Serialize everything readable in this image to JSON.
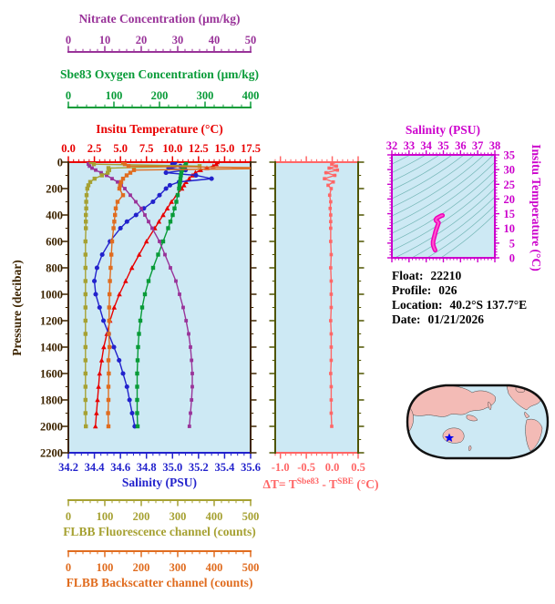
{
  "colors": {
    "plot_bg": "#cde9f4",
    "pressure": "#3d2400",
    "temperature": "#e80000",
    "salinity": "#2222cc",
    "oxygen": "#089b38",
    "nitrate": "#993399",
    "fluorescence": "#a6a132",
    "backscatter": "#e06c1f",
    "delta_t": "#ff6666",
    "mid_frame": "#4f5400",
    "ts_axis": "#cc00cc",
    "ts_curve": "#ee00bb",
    "ts_curve_core": "#ff55cc",
    "ts_contour": "#74b6b6",
    "map_land": "#f3bbb6",
    "map_ocean": "#cde9f4",
    "map_marker": "#0000ee",
    "info_text": "#000000"
  },
  "info": {
    "float_label": "Float:",
    "float_value": "22210",
    "profile_label": "Profile:",
    "profile_value": "026",
    "location_label": "Location:",
    "location_value": "40.2°S  137.7°E",
    "date_label": "Date:",
    "date_value": "01/21/2026"
  },
  "chart_data": [
    {
      "id": "profile-plot",
      "type": "line",
      "y_axis": {
        "label": "Pressure (decibar)",
        "range": [
          0,
          2200
        ],
        "ticks": [
          0,
          200,
          400,
          600,
          800,
          1000,
          1200,
          1400,
          1600,
          1800,
          2000,
          2200
        ],
        "minor_step": 100
      },
      "x_axes": [
        {
          "id": "nitrate",
          "label": "Nitrate Concentration (μm/kg)",
          "range": [
            0,
            50
          ],
          "ticks": [
            0,
            10,
            20,
            30,
            40,
            50
          ],
          "minor_step": 2
        },
        {
          "id": "oxygen",
          "label": "Sbe83 Oxygen Concentration (μm/kg)",
          "range": [
            0,
            400
          ],
          "ticks": [
            0,
            100,
            200,
            300,
            400
          ],
          "minor_step": 20
        },
        {
          "id": "temperature",
          "label": "Insitu Temperature (°C)",
          "range": [
            0,
            17.5
          ],
          "ticks": [
            "0.0",
            "2.5",
            "5.0",
            "7.5",
            "10.0",
            "12.5",
            "15.0",
            "17.5"
          ],
          "minor_step": 0.5
        },
        {
          "id": "salinity",
          "label": "Salinity (PSU)",
          "range": [
            34.2,
            35.6
          ],
          "ticks": [
            "34.2",
            "34.4",
            "34.6",
            "34.8",
            "35.0",
            "35.2",
            "35.4",
            "35.6"
          ],
          "minor_step": 0.05
        },
        {
          "id": "fluorescence",
          "label": "FLBB Fluorescence channel (counts)",
          "range": [
            0,
            500
          ],
          "ticks": [
            0,
            100,
            200,
            300,
            400,
            500
          ],
          "minor_step": 20
        },
        {
          "id": "backscatter",
          "label": "FLBB Backscatter channel (counts)",
          "range": [
            0,
            500
          ],
          "ticks": [
            0,
            100,
            200,
            300,
            400,
            500
          ],
          "minor_step": 20
        }
      ],
      "pressure": [
        0,
        15,
        30,
        45,
        60,
        80,
        100,
        125,
        150,
        175,
        200,
        250,
        300,
        350,
        400,
        450,
        500,
        600,
        700,
        800,
        900,
        1000,
        1100,
        1200,
        1300,
        1400,
        1500,
        1600,
        1700,
        1800,
        1900,
        2000
      ],
      "series": [
        {
          "name": "Insitu Temperature",
          "axis": "temperature",
          "marker": "triangle",
          "values": [
            14.3,
            14.2,
            13.9,
            13.3,
            12.7,
            12.2,
            11.9,
            11.6,
            11.3,
            11.1,
            10.9,
            10.4,
            9.9,
            9.5,
            9.1,
            8.7,
            8.3,
            7.5,
            6.8,
            6.1,
            5.5,
            4.9,
            4.4,
            4.0,
            3.7,
            3.4,
            3.2,
            3.0,
            2.9,
            2.8,
            2.7,
            2.6
          ]
        },
        {
          "name": "Salinity",
          "axis": "salinity",
          "marker": "circle",
          "values": [
            35.02,
            35.0,
            35.06,
            34.97,
            35.1,
            34.95,
            35.18,
            35.3,
            35.05,
            34.98,
            34.95,
            34.9,
            34.85,
            34.78,
            34.72,
            34.65,
            34.6,
            34.52,
            34.46,
            34.42,
            34.4,
            34.41,
            34.44,
            34.47,
            34.51,
            34.55,
            34.59,
            34.62,
            34.65,
            34.67,
            34.69,
            34.71
          ]
        },
        {
          "name": "Sbe83 Oxygen",
          "axis": "oxygen",
          "marker": "square",
          "values": [
            258,
            258,
            256,
            252,
            250,
            248,
            247,
            246,
            245,
            244,
            243,
            240,
            237,
            233,
            229,
            224,
            219,
            208,
            197,
            186,
            176,
            168,
            162,
            158,
            155,
            153,
            152,
            151,
            151,
            151,
            151,
            152
          ]
        },
        {
          "name": "Nitrate",
          "axis": "nitrate",
          "marker": "square",
          "values": [
            5.5,
            5.5,
            5.8,
            6.5,
            7.5,
            9,
            10.5,
            12,
            13.5,
            14.5,
            15.5,
            17,
            18.5,
            20,
            21,
            22,
            23,
            25,
            26.5,
            28,
            29.5,
            30.5,
            31.5,
            32.3,
            33,
            33.5,
            33.8,
            34,
            34,
            33.8,
            33.5,
            33.2
          ]
        },
        {
          "name": "FLBB Fluorescence",
          "axis": "fluorescence",
          "marker": "square",
          "values": [
            62,
            70,
            360,
            110,
            112,
            108,
            92,
            72,
            60,
            55,
            52,
            50,
            49,
            49,
            48,
            48,
            48,
            47,
            47,
            47,
            47,
            47,
            47,
            47,
            47,
            47,
            47,
            47,
            47,
            47,
            47,
            48
          ]
        },
        {
          "name": "FLBB Backscatter",
          "axis": "backscatter",
          "marker": "square",
          "values": [
            150,
            155,
            165,
            620,
            180,
            170,
            160,
            150,
            145,
            142,
            140,
            150,
            135,
            130,
            128,
            126,
            124,
            120,
            118,
            116,
            114,
            113,
            112,
            112,
            111,
            113,
            110,
            111,
            110,
            110,
            109,
            110
          ]
        }
      ]
    },
    {
      "id": "delta-t-plot",
      "type": "line",
      "x_axis": {
        "label_parts": {
          "t1": "ΔT= T",
          "sup1": "Sbe83",
          "t2": " - T",
          "sup2": "SBE",
          "t3": " (°C)"
        },
        "range": [
          -1.1,
          0.5
        ],
        "ticks": [
          "-1.0",
          "-0.5",
          "0.0",
          "0.5"
        ],
        "minor_step": 0.1
      },
      "y_axis": {
        "range": [
          0,
          2200
        ],
        "tick_step": 200,
        "minor_step": 100
      },
      "pressure": [
        0,
        15,
        30,
        45,
        60,
        80,
        100,
        125,
        150,
        175,
        200,
        250,
        300,
        350,
        400,
        450,
        500,
        600,
        700,
        800,
        900,
        1000,
        1100,
        1200,
        1300,
        1400,
        1500,
        1600,
        1700,
        1800,
        1900,
        2000
      ],
      "series": [
        {
          "name": "T_Sbe83 minus T_SBE",
          "marker": "square",
          "values": [
            0.02,
            -0.01,
            0.08,
            -0.06,
            0.1,
            -0.12,
            0.05,
            -0.15,
            0.02,
            -0.08,
            -0.02,
            -0.05,
            -0.03,
            -0.04,
            -0.03,
            -0.03,
            -0.03,
            -0.03,
            -0.02,
            -0.03,
            -0.02,
            -0.02,
            -0.02,
            -0.03,
            -0.02,
            -0.02,
            -0.02,
            -0.03,
            -0.02,
            -0.02,
            -0.02,
            -0.01
          ]
        }
      ]
    },
    {
      "id": "ts-diagram",
      "type": "line",
      "x_axis": {
        "label": "Salinity (PSU)",
        "range": [
          32,
          38
        ],
        "ticks": [
          32,
          33,
          34,
          35,
          36,
          37,
          38
        ],
        "minor_step": 0.2
      },
      "y_axis": {
        "label": "Insitu Temperature (°C)",
        "range": [
          0,
          35
        ],
        "ticks": [
          0,
          5,
          10,
          15,
          20,
          25,
          30,
          35
        ],
        "minor_step": 1
      },
      "density_contours": {
        "shown": true,
        "count": 20
      },
      "curve": [
        [
          34.52,
          2.6
        ],
        [
          34.45,
          3.5
        ],
        [
          34.4,
          4.5
        ],
        [
          34.4,
          5.5
        ],
        [
          34.44,
          6.5
        ],
        [
          34.5,
          7.8
        ],
        [
          34.55,
          9.0
        ],
        [
          34.62,
          10.2
        ],
        [
          34.68,
          11.2
        ],
        [
          34.72,
          11.9
        ],
        [
          34.66,
          12.3
        ],
        [
          34.58,
          12.6
        ],
        [
          34.56,
          13.0
        ],
        [
          34.62,
          13.5
        ],
        [
          34.75,
          13.9
        ],
        [
          34.88,
          14.3
        ],
        [
          34.95,
          14.4
        ]
      ]
    }
  ],
  "map": {
    "name": "world-map-pacific-centered",
    "marker": "float-location-star"
  }
}
